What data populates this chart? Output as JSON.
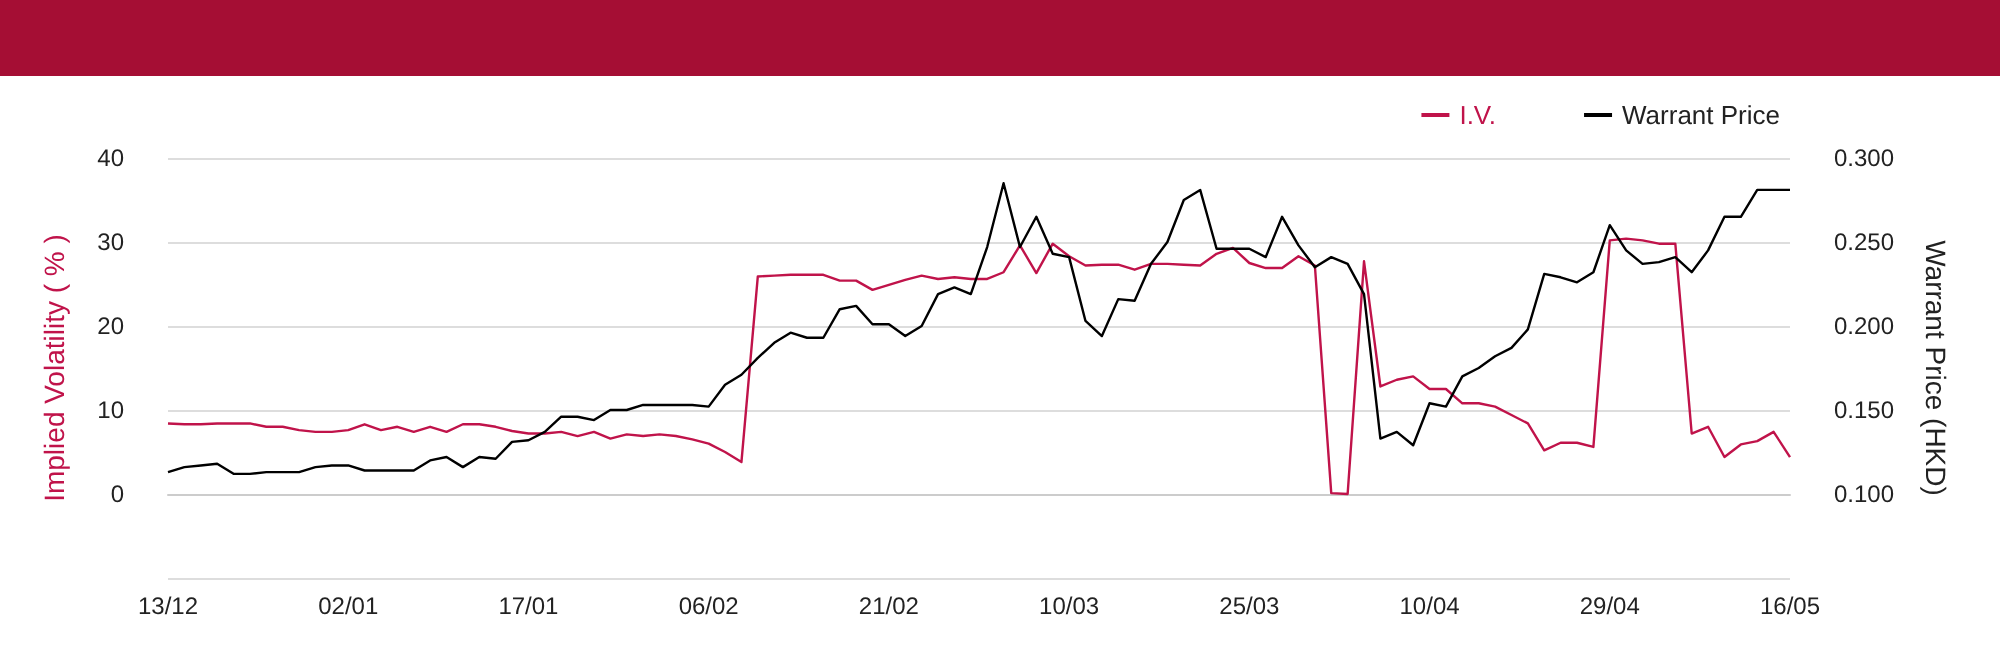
{
  "chart_data": {
    "type": "line",
    "ylabel": "Implied Volatility ( % )",
    "y2label": "Warrant Price (HKD)",
    "categories": [
      "13/12",
      null,
      null,
      null,
      null,
      null,
      null,
      null,
      null,
      null,
      null,
      "02/01",
      null,
      null,
      null,
      null,
      null,
      null,
      null,
      null,
      null,
      null,
      "17/01",
      null,
      null,
      null,
      null,
      null,
      null,
      null,
      null,
      null,
      null,
      "06/02",
      null,
      null,
      null,
      null,
      null,
      null,
      null,
      null,
      null,
      null,
      "21/02",
      null,
      null,
      null,
      null,
      null,
      null,
      null,
      null,
      null,
      null,
      "10/03",
      null,
      null,
      null,
      null,
      null,
      null,
      null,
      null,
      null,
      null,
      "25/03",
      null,
      null,
      null,
      null,
      null,
      null,
      null,
      null,
      null,
      null,
      "10/04",
      null,
      null,
      null,
      null,
      null,
      null,
      null,
      null,
      null,
      null,
      "29/04",
      null,
      null,
      null,
      null,
      null,
      null,
      null,
      null,
      null,
      null,
      "16/05"
    ],
    "series": [
      {
        "name": "I.V.",
        "color": "#c0134a",
        "values": [
          8.4,
          8.3,
          8.3,
          8.4,
          8.4,
          8.4,
          8.0,
          8.0,
          7.6,
          7.4,
          7.4,
          7.6,
          8.3,
          7.6,
          8.0,
          7.4,
          8.0,
          7.4,
          8.3,
          8.3,
          8.0,
          7.5,
          7.2,
          7.2,
          7.4,
          6.9,
          7.4,
          6.6,
          7.1,
          6.9,
          7.1,
          6.9,
          6.5,
          6.0,
          5.0,
          3.8,
          25.9,
          26.0,
          26.1,
          26.1,
          26.1,
          25.4,
          25.4,
          24.3,
          24.9,
          25.5,
          26.0,
          25.6,
          25.8,
          25.6,
          25.6,
          26.4,
          29.6,
          26.3,
          29.8,
          28.3,
          27.2,
          27.3,
          27.3,
          26.7,
          27.4,
          27.4,
          27.3,
          27.2,
          28.6,
          29.3,
          27.5,
          26.9,
          26.9,
          28.3,
          27.2,
          0.1,
          0,
          27.7,
          12.8,
          13.6,
          14.0,
          12.5,
          12.5,
          10.8,
          10.8,
          10.4,
          9.4,
          8.4,
          5.2,
          6.1,
          6.1,
          5.6,
          30.2,
          30.4,
          30.2,
          29.8,
          29.8,
          7.2,
          8.0,
          4.4,
          5.9,
          6.3,
          7.4,
          4.4
        ]
      },
      {
        "name": "Warrant Price",
        "color": "#000000",
        "axis": "y2",
        "values": [
          0.113,
          0.116,
          0.117,
          0.118,
          0.112,
          0.112,
          0.113,
          0.113,
          0.113,
          0.116,
          0.117,
          0.117,
          0.114,
          0.114,
          0.114,
          0.114,
          0.12,
          0.122,
          0.116,
          0.122,
          0.121,
          0.131,
          0.132,
          0.137,
          0.146,
          0.146,
          0.144,
          0.15,
          0.15,
          0.153,
          0.153,
          0.153,
          0.153,
          0.152,
          0.165,
          0.171,
          0.181,
          0.19,
          0.196,
          0.193,
          0.193,
          0.21,
          0.212,
          0.201,
          0.201,
          0.194,
          0.2,
          0.219,
          0.223,
          0.219,
          0.247,
          0.285,
          0.247,
          0.265,
          0.243,
          0.241,
          0.203,
          0.194,
          0.216,
          0.215,
          0.237,
          0.25,
          0.275,
          0.281,
          0.246,
          0.246,
          0.246,
          0.241,
          0.265,
          0.248,
          0.235,
          0.241,
          0.237,
          0.219,
          0.133,
          0.137,
          0.129,
          0.154,
          0.152,
          0.17,
          0.175,
          0.182,
          0.187,
          0.198,
          0.231,
          0.229,
          0.226,
          0.232,
          0.26,
          0.245,
          0.237,
          0.238,
          0.241,
          0.232,
          0.245,
          0.265,
          0.265,
          0.281,
          0.281,
          0.281
        ]
      }
    ],
    "ylim": [
      -10,
      40
    ],
    "yticks": [
      {
        "value": -10,
        "label": null
      },
      0,
      10,
      20,
      30,
      40
    ],
    "y2lim": [
      0.05,
      0.3
    ],
    "y2ticks": [
      {
        "value": 0.05,
        "label": null
      },
      {
        "value": 0.1,
        "label": "0.100"
      },
      {
        "value": 0.15,
        "label": "0.150"
      },
      {
        "value": 0.2,
        "label": "0.200"
      },
      {
        "value": 0.25,
        "label": "0.250"
      },
      {
        "value": 0.3,
        "label": "0.300"
      }
    ],
    "grid": "y",
    "legend": "top right",
    "marker": "none",
    "line_style": "solid"
  }
}
